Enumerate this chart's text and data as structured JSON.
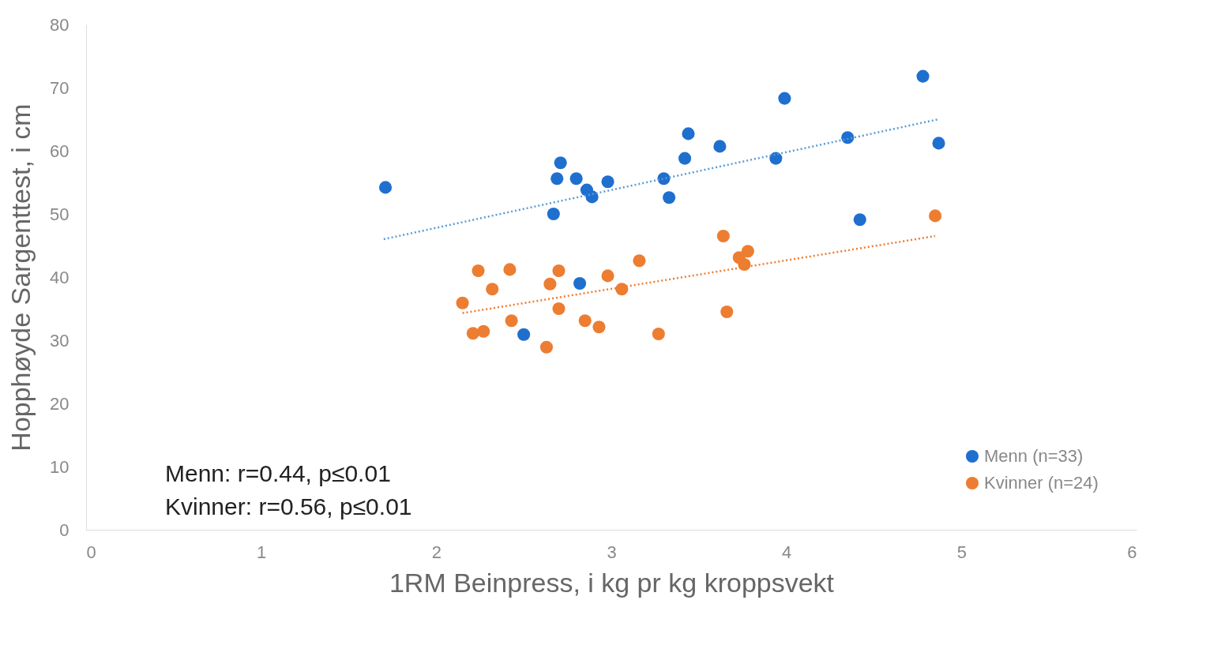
{
  "chart_data": {
    "type": "scatter",
    "xlabel": "1RM Beinpress, i kg pr kg kroppsvekt",
    "ylabel": "Hopphøyde Sargenttest, i cm",
    "xlim": [
      0,
      6
    ],
    "xticks": [
      0,
      1,
      2,
      3,
      4,
      5,
      6
    ],
    "ylim": [
      0,
      80
    ],
    "yticks": [
      0,
      10,
      20,
      30,
      40,
      50,
      60,
      70,
      80
    ],
    "grid": false,
    "legend": "bottom right",
    "annotations": [
      "Menn: r=0.44, p≤0.01",
      "Kvinner: r=0.56, p≤0.01"
    ],
    "series": [
      {
        "name": "Menn (n=33)",
        "color": "#1f6fcf",
        "marker": "circle",
        "x": [
          1.71,
          2.69,
          2.71,
          2.8,
          2.86,
          2.89,
          2.98,
          2.67,
          3.3,
          3.33,
          3.42,
          3.44,
          3.62,
          3.94,
          3.99,
          4.35,
          4.42,
          4.78,
          4.87,
          2.82,
          2.5
        ],
        "values": [
          54.2,
          55.6,
          58.1,
          55.6,
          53.8,
          52.7,
          55.1,
          50.0,
          55.6,
          52.6,
          58.8,
          62.7,
          60.7,
          58.8,
          68.3,
          62.1,
          49.1,
          71.8,
          61.2,
          39.0,
          30.9
        ]
      },
      {
        "name": "Kvinner (n=24)",
        "color": "#ed7d31",
        "marker": "circle",
        "x": [
          2.24,
          2.42,
          2.32,
          2.15,
          2.7,
          2.65,
          2.7,
          2.43,
          2.21,
          2.27,
          2.63,
          2.85,
          2.93,
          2.98,
          3.06,
          3.16,
          3.27,
          3.64,
          3.66,
          3.78,
          3.73,
          3.76,
          4.85
        ],
        "values": [
          41.0,
          41.2,
          38.1,
          35.9,
          41.0,
          38.9,
          35.0,
          33.1,
          31.1,
          31.4,
          28.9,
          33.1,
          32.1,
          40.2,
          38.1,
          42.6,
          31.0,
          46.5,
          34.5,
          44.1,
          43.1,
          42.0,
          49.7
        ]
      },
      {
        "color": "#5b9bd5",
        "type": "line",
        "line_style": "dotted",
        "x": [
          1.7,
          4.87
        ],
        "values": [
          46.0,
          65.0
        ]
      },
      {
        "color": "#ed7d31",
        "type": "line",
        "line_style": "dotted",
        "x": [
          2.15,
          4.85
        ],
        "values": [
          34.3,
          46.5
        ]
      }
    ]
  }
}
